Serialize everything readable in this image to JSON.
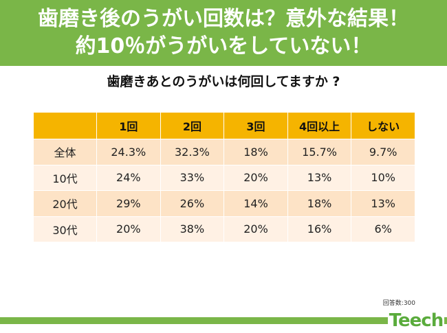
{
  "headline": {
    "line1": "歯磨き後のうがい回数は？意外な結果！",
    "line2": "約10％がうがいをしていない！"
  },
  "chart_data": {
    "type": "table",
    "title": "歯磨きあとのうがいは何回してますか ?",
    "columns": [
      "",
      "1回",
      "2回",
      "3回",
      "4回以上",
      "しない"
    ],
    "rows": [
      {
        "label": "全体",
        "values": [
          "24.3%",
          "32.3%",
          "18%",
          "15.7%",
          "9.7%"
        ]
      },
      {
        "label": "10代",
        "values": [
          "24%",
          "33%",
          "20%",
          "13%",
          "10%"
        ]
      },
      {
        "label": "20代",
        "values": [
          "29%",
          "26%",
          "14%",
          "18%",
          "13%"
        ]
      },
      {
        "label": "30代",
        "values": [
          "20%",
          "38%",
          "20%",
          "16%",
          "6%"
        ]
      }
    ]
  },
  "footnote": "回答数:300",
  "logo_text": "Teech",
  "colors": {
    "banner": "#7ab648",
    "header": "#f5b400",
    "row_dark": "#fde3c6",
    "row_light": "#fff1e4",
    "logo": "#5aab3c"
  }
}
